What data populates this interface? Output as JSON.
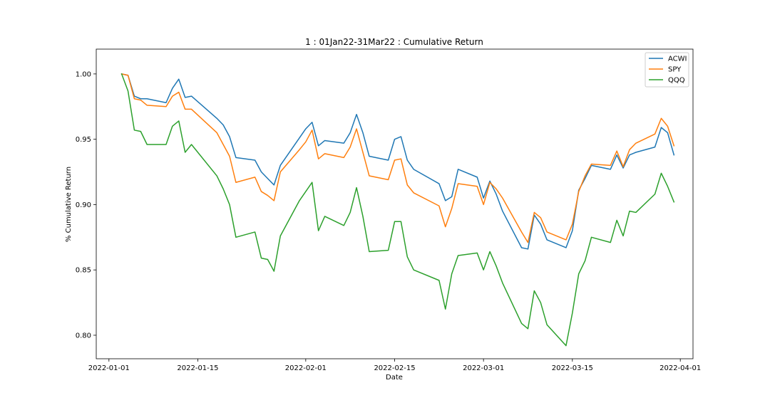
{
  "chart_data": {
    "type": "line",
    "title": "1 : 01Jan22-31Mar22 : Cumulative Return",
    "xlabel": "Date",
    "ylabel": "% Cumulative Return",
    "xlim": [
      "2021-12-30",
      "2022-04-03"
    ],
    "ylim": [
      0.782,
      1.019
    ],
    "x_ticks": [
      "2022-01-01",
      "2022-01-15",
      "2022-02-01",
      "2022-02-15",
      "2022-03-01",
      "2022-03-15",
      "2022-04-01"
    ],
    "y_ticks": [
      0.8,
      0.85,
      0.9,
      0.95,
      1.0
    ],
    "y_tick_labels": [
      "0.80",
      "0.85",
      "0.90",
      "0.95",
      "1.00"
    ],
    "grid": false,
    "legend": "top-right",
    "x": [
      "2022-01-03",
      "2022-01-04",
      "2022-01-05",
      "2022-01-06",
      "2022-01-07",
      "2022-01-10",
      "2022-01-11",
      "2022-01-12",
      "2022-01-13",
      "2022-01-14",
      "2022-01-18",
      "2022-01-19",
      "2022-01-20",
      "2022-01-21",
      "2022-01-24",
      "2022-01-25",
      "2022-01-26",
      "2022-01-27",
      "2022-01-28",
      "2022-01-31",
      "2022-02-01",
      "2022-02-02",
      "2022-02-03",
      "2022-02-04",
      "2022-02-07",
      "2022-02-08",
      "2022-02-09",
      "2022-02-10",
      "2022-02-11",
      "2022-02-14",
      "2022-02-15",
      "2022-02-16",
      "2022-02-17",
      "2022-02-18",
      "2022-02-22",
      "2022-02-23",
      "2022-02-24",
      "2022-02-25",
      "2022-02-28",
      "2022-03-01",
      "2022-03-02",
      "2022-03-03",
      "2022-03-04",
      "2022-03-07",
      "2022-03-08",
      "2022-03-09",
      "2022-03-10",
      "2022-03-11",
      "2022-03-14",
      "2022-03-15",
      "2022-03-16",
      "2022-03-17",
      "2022-03-18",
      "2022-03-21",
      "2022-03-22",
      "2022-03-23",
      "2022-03-24",
      "2022-03-25",
      "2022-03-28",
      "2022-03-29",
      "2022-03-30",
      "2022-03-31"
    ],
    "series": [
      {
        "name": "ACWI",
        "color": "#1f77b4",
        "values": [
          1.0,
          0.999,
          0.983,
          0.981,
          0.981,
          0.978,
          0.989,
          0.996,
          0.982,
          0.983,
          0.966,
          0.961,
          0.952,
          0.936,
          0.934,
          0.925,
          0.92,
          0.915,
          0.93,
          0.951,
          0.958,
          0.963,
          0.945,
          0.949,
          0.947,
          0.955,
          0.969,
          0.955,
          0.937,
          0.934,
          0.95,
          0.952,
          0.934,
          0.927,
          0.916,
          0.903,
          0.906,
          0.927,
          0.921,
          0.905,
          0.918,
          0.908,
          0.895,
          0.867,
          0.866,
          0.892,
          0.885,
          0.873,
          0.867,
          0.88,
          0.911,
          0.92,
          0.93,
          0.927,
          0.938,
          0.928,
          0.938,
          0.94,
          0.944,
          0.959,
          0.955,
          0.938
        ]
      },
      {
        "name": "SPY",
        "color": "#ff7f0e",
        "values": [
          1.0,
          0.999,
          0.981,
          0.98,
          0.976,
          0.975,
          0.983,
          0.986,
          0.973,
          0.973,
          0.955,
          0.946,
          0.937,
          0.917,
          0.921,
          0.91,
          0.907,
          0.903,
          0.925,
          0.942,
          0.948,
          0.957,
          0.935,
          0.939,
          0.936,
          0.944,
          0.958,
          0.94,
          0.922,
          0.919,
          0.934,
          0.935,
          0.915,
          0.909,
          0.899,
          0.883,
          0.897,
          0.916,
          0.914,
          0.9,
          0.917,
          0.912,
          0.905,
          0.879,
          0.871,
          0.894,
          0.89,
          0.879,
          0.873,
          0.885,
          0.91,
          0.922,
          0.931,
          0.93,
          0.941,
          0.929,
          0.942,
          0.947,
          0.954,
          0.966,
          0.96,
          0.945
        ]
      },
      {
        "name": "QQQ",
        "color": "#2ca02c",
        "values": [
          1.0,
          0.987,
          0.957,
          0.956,
          0.946,
          0.946,
          0.96,
          0.964,
          0.94,
          0.946,
          0.922,
          0.912,
          0.9,
          0.875,
          0.879,
          0.859,
          0.858,
          0.849,
          0.876,
          0.903,
          0.91,
          0.917,
          0.88,
          0.891,
          0.884,
          0.894,
          0.913,
          0.891,
          0.864,
          0.865,
          0.887,
          0.887,
          0.86,
          0.85,
          0.842,
          0.82,
          0.847,
          0.861,
          0.863,
          0.85,
          0.864,
          0.853,
          0.84,
          0.809,
          0.805,
          0.834,
          0.825,
          0.808,
          0.792,
          0.817,
          0.847,
          0.857,
          0.875,
          0.871,
          0.888,
          0.876,
          0.895,
          0.894,
          0.908,
          0.924,
          0.914,
          0.902
        ]
      }
    ]
  }
}
